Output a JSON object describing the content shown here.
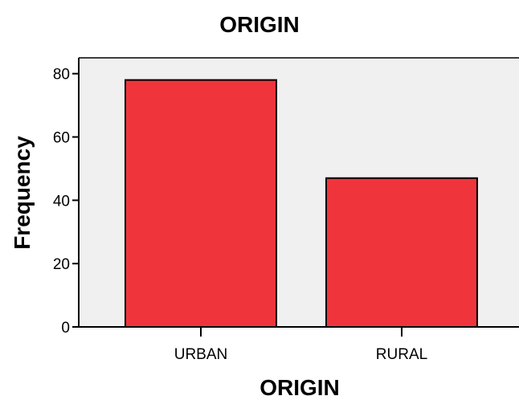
{
  "chart_data": {
    "type": "bar",
    "title": "ORIGIN",
    "xlabel": "ORIGIN",
    "ylabel": "Frequency",
    "categories": [
      "URBAN",
      "RURAL"
    ],
    "values": [
      78,
      47
    ],
    "ylim": [
      0,
      85
    ],
    "yticks": [
      0,
      20,
      40,
      60,
      80
    ],
    "grid": false,
    "legend": "none",
    "colors": {
      "bar": "#f0343c",
      "plot_background": "#f0f0f0",
      "axis": "#000000"
    }
  }
}
